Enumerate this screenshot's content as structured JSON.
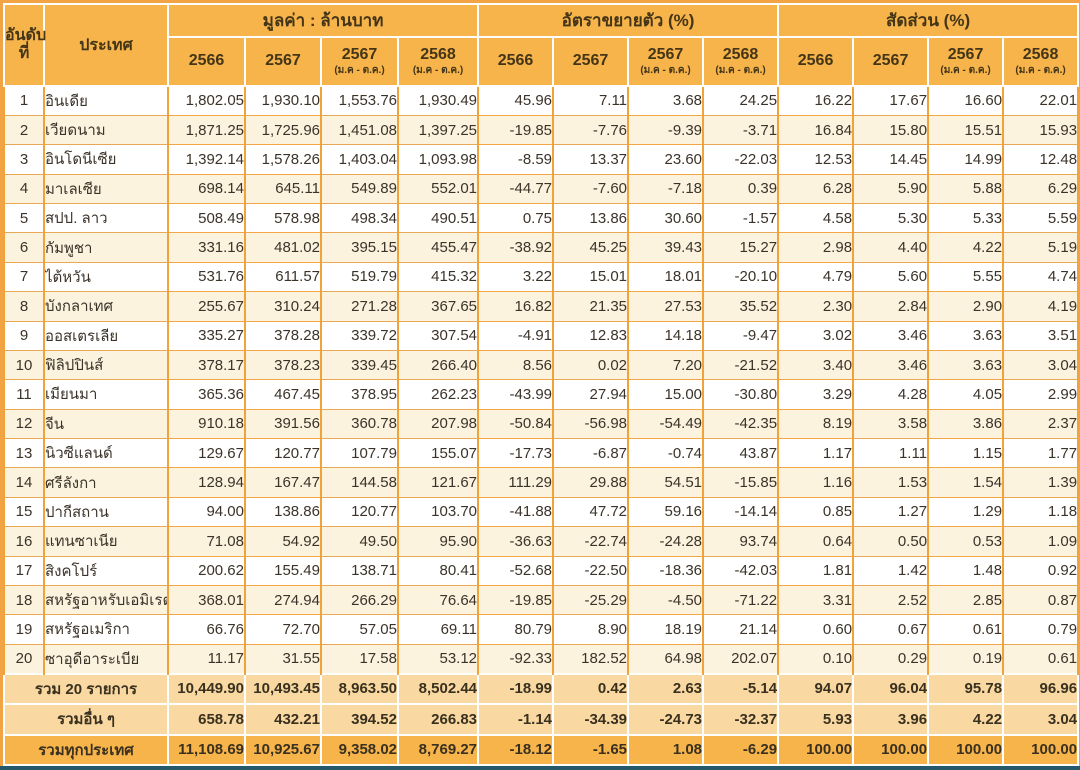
{
  "table": {
    "header": {
      "rank": "อันดับ\nที่",
      "country": "ประเทศ",
      "groups": {
        "value": "มูลค่า : ล้านบาท",
        "growth": "อัตราขยายตัว (%)",
        "share": "สัดส่วน (%)"
      },
      "cols": [
        {
          "year": "2566",
          "period": ""
        },
        {
          "year": "2567",
          "period": ""
        },
        {
          "year": "2567",
          "period": "(ม.ค - ต.ค.)"
        },
        {
          "year": "2568",
          "period": "(ม.ค - ต.ค.)"
        }
      ]
    },
    "rows": [
      {
        "rank": "1",
        "country": "อินเดีย",
        "value": [
          "1,802.05",
          "1,930.10",
          "1,553.76",
          "1,930.49"
        ],
        "growth": [
          "45.96",
          "7.11",
          "3.68",
          "24.25"
        ],
        "share": [
          "16.22",
          "17.67",
          "16.60",
          "22.01"
        ]
      },
      {
        "rank": "2",
        "country": "เวียดนาม",
        "value": [
          "1,871.25",
          "1,725.96",
          "1,451.08",
          "1,397.25"
        ],
        "growth": [
          "-19.85",
          "-7.76",
          "-9.39",
          "-3.71"
        ],
        "share": [
          "16.84",
          "15.80",
          "15.51",
          "15.93"
        ]
      },
      {
        "rank": "3",
        "country": "อินโดนีเซีย",
        "value": [
          "1,392.14",
          "1,578.26",
          "1,403.04",
          "1,093.98"
        ],
        "growth": [
          "-8.59",
          "13.37",
          "23.60",
          "-22.03"
        ],
        "share": [
          "12.53",
          "14.45",
          "14.99",
          "12.48"
        ]
      },
      {
        "rank": "4",
        "country": "มาเลเซีย",
        "value": [
          "698.14",
          "645.11",
          "549.89",
          "552.01"
        ],
        "growth": [
          "-44.77",
          "-7.60",
          "-7.18",
          "0.39"
        ],
        "share": [
          "6.28",
          "5.90",
          "5.88",
          "6.29"
        ]
      },
      {
        "rank": "5",
        "country": "สปป. ลาว",
        "value": [
          "508.49",
          "578.98",
          "498.34",
          "490.51"
        ],
        "growth": [
          "0.75",
          "13.86",
          "30.60",
          "-1.57"
        ],
        "share": [
          "4.58",
          "5.30",
          "5.33",
          "5.59"
        ]
      },
      {
        "rank": "6",
        "country": "กัมพูชา",
        "value": [
          "331.16",
          "481.02",
          "395.15",
          "455.47"
        ],
        "growth": [
          "-38.92",
          "45.25",
          "39.43",
          "15.27"
        ],
        "share": [
          "2.98",
          "4.40",
          "4.22",
          "5.19"
        ]
      },
      {
        "rank": "7",
        "country": "ไต้หวัน",
        "value": [
          "531.76",
          "611.57",
          "519.79",
          "415.32"
        ],
        "growth": [
          "3.22",
          "15.01",
          "18.01",
          "-20.10"
        ],
        "share": [
          "4.79",
          "5.60",
          "5.55",
          "4.74"
        ]
      },
      {
        "rank": "8",
        "country": "บังกลาเทศ",
        "value": [
          "255.67",
          "310.24",
          "271.28",
          "367.65"
        ],
        "growth": [
          "16.82",
          "21.35",
          "27.53",
          "35.52"
        ],
        "share": [
          "2.30",
          "2.84",
          "2.90",
          "4.19"
        ]
      },
      {
        "rank": "9",
        "country": "ออสเตรเลีย",
        "value": [
          "335.27",
          "378.28",
          "339.72",
          "307.54"
        ],
        "growth": [
          "-4.91",
          "12.83",
          "14.18",
          "-9.47"
        ],
        "share": [
          "3.02",
          "3.46",
          "3.63",
          "3.51"
        ]
      },
      {
        "rank": "10",
        "country": "ฟิลิปปินส์",
        "value": [
          "378.17",
          "378.23",
          "339.45",
          "266.40"
        ],
        "growth": [
          "8.56",
          "0.02",
          "7.20",
          "-21.52"
        ],
        "share": [
          "3.40",
          "3.46",
          "3.63",
          "3.04"
        ]
      },
      {
        "rank": "11",
        "country": "เมียนมา",
        "value": [
          "365.36",
          "467.45",
          "378.95",
          "262.23"
        ],
        "growth": [
          "-43.99",
          "27.94",
          "15.00",
          "-30.80"
        ],
        "share": [
          "3.29",
          "4.28",
          "4.05",
          "2.99"
        ]
      },
      {
        "rank": "12",
        "country": "จีน",
        "value": [
          "910.18",
          "391.56",
          "360.78",
          "207.98"
        ],
        "growth": [
          "-50.84",
          "-56.98",
          "-54.49",
          "-42.35"
        ],
        "share": [
          "8.19",
          "3.58",
          "3.86",
          "2.37"
        ]
      },
      {
        "rank": "13",
        "country": "นิวซีแลนด์",
        "value": [
          "129.67",
          "120.77",
          "107.79",
          "155.07"
        ],
        "growth": [
          "-17.73",
          "-6.87",
          "-0.74",
          "43.87"
        ],
        "share": [
          "1.17",
          "1.11",
          "1.15",
          "1.77"
        ]
      },
      {
        "rank": "14",
        "country": "ศรีลังกา",
        "value": [
          "128.94",
          "167.47",
          "144.58",
          "121.67"
        ],
        "growth": [
          "111.29",
          "29.88",
          "54.51",
          "-15.85"
        ],
        "share": [
          "1.16",
          "1.53",
          "1.54",
          "1.39"
        ]
      },
      {
        "rank": "15",
        "country": "ปากีสถาน",
        "value": [
          "94.00",
          "138.86",
          "120.77",
          "103.70"
        ],
        "growth": [
          "-41.88",
          "47.72",
          "59.16",
          "-14.14"
        ],
        "share": [
          "0.85",
          "1.27",
          "1.29",
          "1.18"
        ]
      },
      {
        "rank": "16",
        "country": "แทนซาเนีย",
        "value": [
          "71.08",
          "54.92",
          "49.50",
          "95.90"
        ],
        "growth": [
          "-36.63",
          "-22.74",
          "-24.28",
          "93.74"
        ],
        "share": [
          "0.64",
          "0.50",
          "0.53",
          "1.09"
        ]
      },
      {
        "rank": "17",
        "country": "สิงคโปร์",
        "value": [
          "200.62",
          "155.49",
          "138.71",
          "80.41"
        ],
        "growth": [
          "-52.68",
          "-22.50",
          "-18.36",
          "-42.03"
        ],
        "share": [
          "1.81",
          "1.42",
          "1.48",
          "0.92"
        ]
      },
      {
        "rank": "18",
        "country": "สหรัฐอาหรับเอมิเรตส์",
        "value": [
          "368.01",
          "274.94",
          "266.29",
          "76.64"
        ],
        "growth": [
          "-19.85",
          "-25.29",
          "-4.50",
          "-71.22"
        ],
        "share": [
          "3.31",
          "2.52",
          "2.85",
          "0.87"
        ]
      },
      {
        "rank": "19",
        "country": "สหรัฐอเมริกา",
        "value": [
          "66.76",
          "72.70",
          "57.05",
          "69.11"
        ],
        "growth": [
          "80.79",
          "8.90",
          "18.19",
          "21.14"
        ],
        "share": [
          "0.60",
          "0.67",
          "0.61",
          "0.79"
        ]
      },
      {
        "rank": "20",
        "country": "ซาอุดีอาระเบีย",
        "value": [
          "11.17",
          "31.55",
          "17.58",
          "53.12"
        ],
        "growth": [
          "-92.33",
          "182.52",
          "64.98",
          "202.07"
        ],
        "share": [
          "0.10",
          "0.29",
          "0.19",
          "0.61"
        ]
      }
    ],
    "summary": [
      {
        "label": "รวม 20 รายการ",
        "grand": false,
        "value": [
          "10,449.90",
          "10,493.45",
          "8,963.50",
          "8,502.44"
        ],
        "growth": [
          "-18.99",
          "0.42",
          "2.63",
          "-5.14"
        ],
        "share": [
          "94.07",
          "96.04",
          "95.78",
          "96.96"
        ]
      },
      {
        "label": "รวมอื่น ๆ",
        "grand": false,
        "value": [
          "658.78",
          "432.21",
          "394.52",
          "266.83"
        ],
        "growth": [
          "-1.14",
          "-34.39",
          "-24.73",
          "-32.37"
        ],
        "share": [
          "5.93",
          "3.96",
          "4.22",
          "3.04"
        ]
      },
      {
        "label": "รวมทุกประเทศ",
        "grand": true,
        "value": [
          "11,108.69",
          "10,925.67",
          "9,358.02",
          "8,769.27"
        ],
        "growth": [
          "-18.12",
          "-1.65",
          "1.08",
          "-6.29"
        ],
        "share": [
          "100.00",
          "100.00",
          "100.00",
          "100.00"
        ]
      }
    ]
  },
  "colors": {
    "header_orange": "#F7B44B",
    "stripe_cream": "#FCF3DF",
    "summary_tan": "#F9D9A1",
    "grid_orange": "#F1A33B",
    "outer_orange": "#F2A444",
    "bottom_bar": "#26586C",
    "text": "#3B3329"
  }
}
